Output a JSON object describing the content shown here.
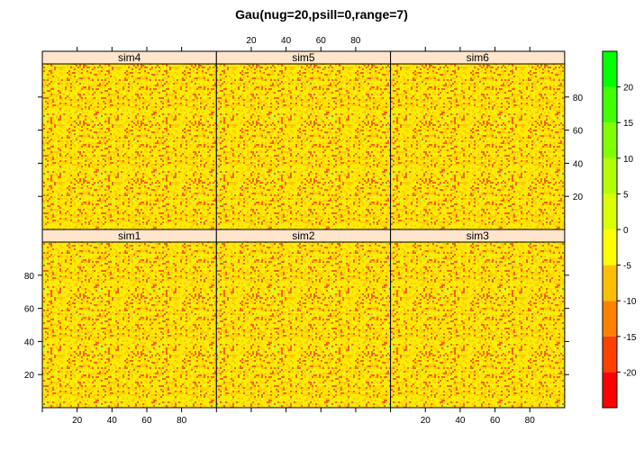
{
  "title": "Gau(nug=20,psill=0,range=7)",
  "chart_data": {
    "type": "heatmap",
    "title": "Gau(nug=20,psill=0,range=7)",
    "layout": {
      "rows": 2,
      "cols": 3
    },
    "panels": [
      {
        "name": "sim4",
        "row": 0,
        "col": 0
      },
      {
        "name": "sim5",
        "row": 0,
        "col": 1
      },
      {
        "name": "sim6",
        "row": 0,
        "col": 2
      },
      {
        "name": "sim1",
        "row": 1,
        "col": 0
      },
      {
        "name": "sim2",
        "row": 1,
        "col": 1
      },
      {
        "name": "sim3",
        "row": 1,
        "col": 2
      }
    ],
    "xlim": [
      0,
      100
    ],
    "ylim": [
      0,
      100
    ],
    "x_ticks": [
      20,
      40,
      60,
      80
    ],
    "y_ticks": [
      20,
      40,
      60,
      80
    ],
    "colorkey": {
      "range": [
        -25,
        25
      ],
      "ticks": [
        -20,
        -15,
        -10,
        -5,
        0,
        5,
        10,
        15,
        20
      ],
      "colors_low_to_high": [
        "#ff0000",
        "#ff4000",
        "#ff8000",
        "#ffbf00",
        "#ffff00",
        "#d9ff00",
        "#b3ff00",
        "#80ff00",
        "#40ff00",
        "#00ff00"
      ]
    },
    "field_colors": {
      "dominant": "#ffea00",
      "secondary": "#ffc800",
      "speckle": "#f06414",
      "green_speckle": "#d4ff2a"
    }
  }
}
